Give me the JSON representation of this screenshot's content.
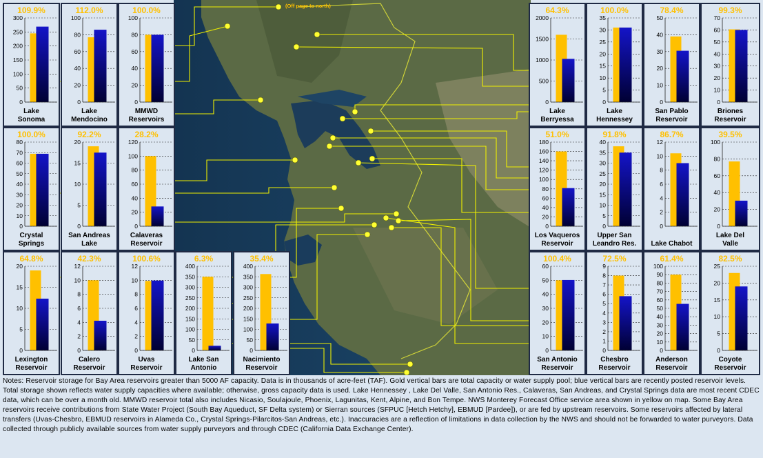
{
  "colors": {
    "capacity": "#ffc000",
    "storage": "#1414c8",
    "storage_dark": "#000033",
    "marker": "#ffff33",
    "line": "#f0f000",
    "panel_bg": "#dce6f1",
    "panel_border": "#1f2a44"
  },
  "map_note": "(Off page to north)",
  "notes": "Notes:  Reservoir storage for Bay Area reservoirs greater than 5000 AF capacity.  Data is in thousands of acre-feet (TAF).  Gold vertical bars are total capacity or water supply pool; blue vertical bars are recently posted reservoir levels.  Total storage shown reflects water supply capacities where available; otherwise, gross capacity data is used.  Lake Hennessey , Lake Del Valle, San Antonio Res., Calaveras, San Andreas, and Crystal Springs data are most recent CDEC data, which can be over a month old.  MMWD reservoir total also includes Nicasio, Soulajoule, Phoenix, Lagunitas, Kent, Alpine, and Bon Tempe.  NWS Monterey Forecast Office service area shown in yellow on map.  Some Bay Area reservoirs receive contributions from State Water Project (South Bay Aqueduct, SF Delta system) or Sierran sources (SFPUC [Hetch Hetchy], EBMUD [Pardee]), or are fed by upstream reservoirs.  Some reservoirs affected by lateral transfers (Uvas-Chesbro, EBMUD reservoirs in Alameda Co., Crystal Springs-Pilarcitos-San Andreas, etc.).  Inaccuracies are a reflection of limitations in data collection by the NWS and should not be forwarded to water purveyors.  Data collected through publicly available sources from water supply purveyors and through CDEC (California Data Exchange Center).",
  "chart_data": [
    {
      "type": "bar",
      "name": "Lake\nSonoma",
      "percent": "109.9%",
      "capacity": 245,
      "storage": 269,
      "ylim": [
        0,
        300
      ],
      "ticks": [
        0,
        50,
        100,
        150,
        200,
        250,
        300
      ]
    },
    {
      "type": "bar",
      "name": "Lake\nMendocino",
      "percent": "112.0%",
      "capacity": 77,
      "storage": 86,
      "ylim": [
        0,
        100
      ],
      "ticks": [
        0,
        20,
        40,
        60,
        80,
        100
      ]
    },
    {
      "type": "bar",
      "name": "MMWD\nReservoirs",
      "percent": "100.0%",
      "capacity": 80,
      "storage": 80,
      "ylim": [
        0,
        100
      ],
      "ticks": [
        0,
        20,
        40,
        60,
        80,
        100
      ]
    },
    {
      "type": "bar",
      "name": "Lake\nBerryessa",
      "percent": "64.3%",
      "capacity": 1600,
      "storage": 1028,
      "ylim": [
        0,
        2000
      ],
      "ticks": [
        0,
        500,
        1000,
        1500,
        2000
      ]
    },
    {
      "type": "bar",
      "name": "Lake\nHennessey",
      "percent": "100.0%",
      "capacity": 31,
      "storage": 31,
      "ylim": [
        0,
        35
      ],
      "ticks": [
        0,
        5,
        10,
        15,
        20,
        25,
        30,
        35
      ]
    },
    {
      "type": "bar",
      "name": "San Pablo\nReservoir",
      "percent": "78.4%",
      "capacity": 39,
      "storage": 30.5,
      "ylim": [
        0,
        50
      ],
      "ticks": [
        0,
        10,
        20,
        30,
        40,
        50
      ]
    },
    {
      "type": "bar",
      "name": "Briones\nReservoir",
      "percent": "99.3%",
      "capacity": 60.5,
      "storage": 60,
      "ylim": [
        0,
        70
      ],
      "ticks": [
        0,
        10,
        20,
        30,
        40,
        50,
        60,
        70
      ]
    },
    {
      "type": "bar",
      "name": "Crystal\nSprings",
      "percent": "100.0%",
      "capacity": 68.9,
      "storage": 68.9,
      "ylim": [
        0,
        80
      ],
      "ticks": [
        0,
        10,
        20,
        30,
        40,
        50,
        60,
        70,
        80
      ]
    },
    {
      "type": "bar",
      "name": "San Andreas\nLake",
      "percent": "92.2%",
      "capacity": 19,
      "storage": 17.5,
      "ylim": [
        0,
        20
      ],
      "ticks": [
        0,
        5,
        10,
        15,
        20
      ]
    },
    {
      "type": "bar",
      "name": "Calaveras\nReservoir",
      "percent": "28.2%",
      "capacity": 100,
      "storage": 28.2,
      "ylim": [
        0,
        120
      ],
      "ticks": [
        0,
        20,
        40,
        60,
        80,
        100,
        120
      ]
    },
    {
      "type": "bar",
      "name": "Los Vaqueros\nReservoir",
      "percent": "51.0%",
      "capacity": 160,
      "storage": 81.6,
      "ylim": [
        0,
        180
      ],
      "ticks": [
        0,
        20,
        40,
        60,
        80,
        100,
        120,
        140,
        160,
        180
      ]
    },
    {
      "type": "bar",
      "name": "Upper San\nLeandro Res.",
      "percent": "91.8%",
      "capacity": 38,
      "storage": 35,
      "ylim": [
        0,
        40
      ],
      "ticks": [
        0,
        5,
        10,
        15,
        20,
        25,
        30,
        35,
        40
      ]
    },
    {
      "type": "bar",
      "name": "Lake Chabot",
      "percent": "86.7%",
      "capacity": 10.4,
      "storage": 9,
      "ylim": [
        0,
        12
      ],
      "ticks": [
        0,
        2,
        4,
        6,
        8,
        10,
        12
      ]
    },
    {
      "type": "bar",
      "name": "Lake Del\nValle",
      "percent": "39.5%",
      "capacity": 77,
      "storage": 30.4,
      "ylim": [
        0,
        100
      ],
      "ticks": [
        0,
        20,
        40,
        60,
        80,
        100
      ]
    },
    {
      "type": "bar",
      "name": "Lexington\nReservoir",
      "percent": "64.8%",
      "capacity": 19,
      "storage": 12.3,
      "ylim": [
        0,
        20
      ],
      "ticks": [
        0,
        5,
        10,
        15,
        20
      ]
    },
    {
      "type": "bar",
      "name": "Calero\nReservoir",
      "percent": "42.3%",
      "capacity": 10,
      "storage": 4.23,
      "ylim": [
        0,
        12
      ],
      "ticks": [
        0,
        2,
        4,
        6,
        8,
        10,
        12
      ]
    },
    {
      "type": "bar",
      "name": "Uvas\nReservoir",
      "percent": "100.6%",
      "capacity": 9.9,
      "storage": 9.96,
      "ylim": [
        0,
        12
      ],
      "ticks": [
        0,
        2,
        4,
        6,
        8,
        10,
        12
      ]
    },
    {
      "type": "bar",
      "name": "Lake San\nAntonio",
      "percent": "6.3%",
      "capacity": 350,
      "storage": 22,
      "ylim": [
        0,
        400
      ],
      "ticks": [
        0,
        50,
        100,
        150,
        200,
        250,
        300,
        350,
        400
      ]
    },
    {
      "type": "bar",
      "name": "Nacimiento\nReservoir",
      "percent": "35.4%",
      "capacity": 363,
      "storage": 128,
      "ylim": [
        0,
        400
      ],
      "ticks": [
        0,
        50,
        100,
        150,
        200,
        250,
        300,
        350,
        400
      ]
    },
    {
      "type": "bar",
      "name": "San Antonio\nReservoir",
      "percent": "100.4%",
      "capacity": 50,
      "storage": 50.2,
      "ylim": [
        0,
        60
      ],
      "ticks": [
        0,
        10,
        20,
        30,
        40,
        50,
        60
      ]
    },
    {
      "type": "bar",
      "name": "Chesbro\nReservoir",
      "percent": "72.5%",
      "capacity": 8,
      "storage": 5.8,
      "ylim": [
        0,
        9
      ],
      "ticks": [
        0,
        1,
        2,
        3,
        4,
        5,
        6,
        7,
        8,
        9
      ]
    },
    {
      "type": "bar",
      "name": "Anderson\nReservoir",
      "percent": "61.4%",
      "capacity": 90,
      "storage": 55.3,
      "ylim": [
        0,
        100
      ],
      "ticks": [
        0,
        10,
        20,
        30,
        40,
        50,
        60,
        70,
        80,
        90,
        100
      ]
    },
    {
      "type": "bar",
      "name": "Coyote\nReservoir",
      "percent": "82.5%",
      "capacity": 23,
      "storage": 19,
      "ylim": [
        0,
        25
      ],
      "ticks": [
        0,
        5,
        10,
        15,
        20,
        25
      ]
    }
  ]
}
